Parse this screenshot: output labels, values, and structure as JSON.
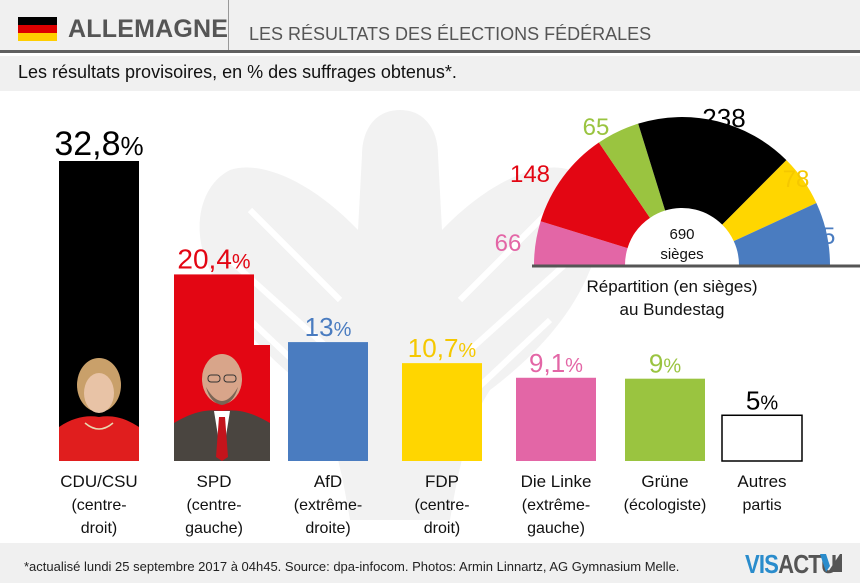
{
  "header": {
    "country": "ALLEMAGNE",
    "headline": "LES RÉSULTATS DES ÉLECTIONS FÉDÉRALES",
    "flag_colors": [
      "#000000",
      "#dd0000",
      "#ffce00"
    ],
    "subtitle": "Les résultats provisoires, en % des suffrages obtenus*."
  },
  "footer": {
    "note": "*actualisé lundi 25 septembre 2017 à 04h45.   Source: dpa-infocom.   Photos: Armin Linnartz, AG Gymnasium Melle.",
    "logo_part1": "VIS",
    "logo_part2": "ACTU"
  },
  "chart_data": [
    {
      "type": "bar",
      "title": "Les résultats provisoires, en % des suffrages obtenus*.",
      "xlabel": "",
      "ylabel": "% des suffrages",
      "ylim": [
        0,
        32.8
      ],
      "grid": false,
      "categories": [
        "CDU/CSU",
        "SPD",
        "AfD",
        "FDP",
        "Die Linke",
        "Grüne",
        "Autres partis"
      ],
      "category_sublabels": [
        "(centre-droit)",
        "(centre-gauche)",
        "(extrême-droite)",
        "(centre-droit)",
        "(extrême-gauche)",
        "(écologiste)",
        ""
      ],
      "label_lines": [
        [
          "CDU/CSU",
          "(centre-",
          "droit)"
        ],
        [
          "SPD",
          "(centre-",
          "gauche)"
        ],
        [
          "AfD",
          "(extrême-",
          "droite)"
        ],
        [
          "FDP",
          "(centre-",
          "droit)"
        ],
        [
          "Die Linke",
          "(extrême-",
          "gauche)"
        ],
        [
          "Grüne",
          "(écologiste)"
        ],
        [
          "Autres",
          "partis"
        ]
      ],
      "values": [
        32.8,
        20.4,
        13,
        10.7,
        9.1,
        9,
        5
      ],
      "value_labels": [
        "32,8",
        "20,4",
        "13",
        "10,7",
        "9,1",
        "9",
        "5"
      ],
      "unit": "%",
      "colors": [
        "#000000",
        "#e30613",
        "#4a7cc0",
        "#ffd600",
        "#e366a6",
        "#9ac440",
        "#ffffff"
      ],
      "label_colors": [
        "#000000",
        "#e30613",
        "#4a7cc0",
        "#f5c800",
        "#e366a6",
        "#9ac440",
        "#000000"
      ],
      "photos": [
        "Angela Merkel",
        "Martin Schulz"
      ]
    },
    {
      "type": "pie",
      "subtype": "parliament-semicircle",
      "title": "Répartition (en sièges) au Bundestag",
      "title_lines": [
        "Répartition (en sièges)",
        "au Bundestag"
      ],
      "center_label": [
        "690",
        "sièges"
      ],
      "total": 690,
      "order_left_to_right": [
        "Die Linke",
        "SPD",
        "Grüne",
        "CDU/CSU",
        "FDP",
        "AfD"
      ],
      "values": [
        66,
        148,
        65,
        238,
        78,
        95
      ],
      "labels": [
        "66",
        "148",
        "65",
        "238",
        "78",
        "95"
      ],
      "colors": [
        "#e366a6",
        "#e30613",
        "#9ac440",
        "#000000",
        "#ffd600",
        "#4a7cc0"
      ],
      "label_colors": [
        "#e366a6",
        "#e30613",
        "#9ac440",
        "#000000",
        "#f5c800",
        "#4a7cc0"
      ]
    }
  ]
}
